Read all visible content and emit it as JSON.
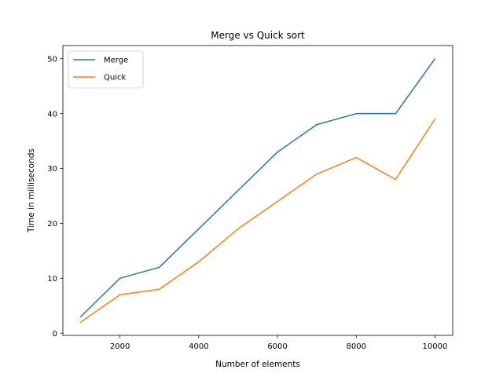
{
  "chart_data": {
    "type": "line",
    "title": "Merge vs Quick sort",
    "xlabel": "Number of elements",
    "ylabel": "Time in milliseconds",
    "x": [
      1000,
      2000,
      3000,
      4000,
      5000,
      6000,
      7000,
      8000,
      9000,
      10000
    ],
    "xlim": [
      550,
      10450
    ],
    "ylim": [
      -0.4,
      52.4
    ],
    "xticks": [
      2000,
      4000,
      6000,
      8000,
      10000
    ],
    "yticks": [
      0,
      10,
      20,
      30,
      40,
      50
    ],
    "grid": false,
    "legend_position": "top-left",
    "series": [
      {
        "name": "Merge",
        "color": "#1f77b4",
        "values": [
          3,
          10,
          12,
          19,
          26,
          33,
          38,
          40,
          40,
          50
        ]
      },
      {
        "name": "Quick",
        "color": "#ff7f0e",
        "values": [
          2,
          7,
          8,
          13,
          19,
          24,
          29,
          32,
          28,
          39
        ]
      }
    ]
  }
}
